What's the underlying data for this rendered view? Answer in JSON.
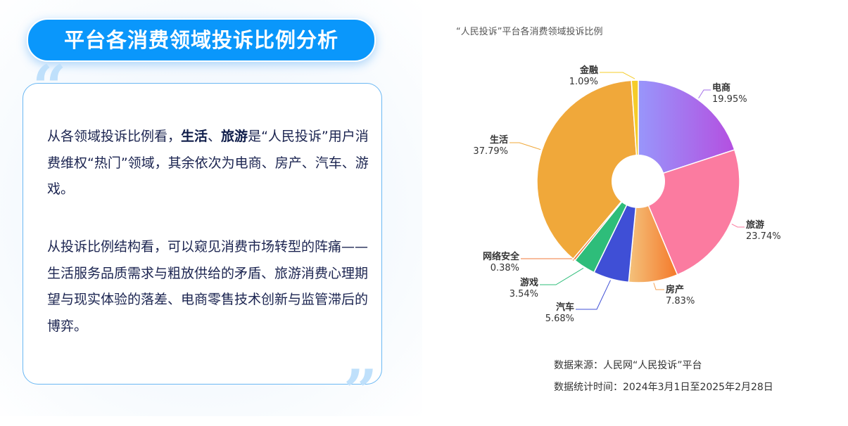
{
  "header": {
    "title": "平台各消费领域投诉比例分析"
  },
  "text": {
    "p1_a": "从各领域投诉比例看，",
    "p1_b1": "生活",
    "p1_sep": "、",
    "p1_b2": "旅游",
    "p1_c": "是“人民投诉”用户消费维权“热门”领域，其余依次为电商、房产、汽车、游戏。",
    "p2": "从投诉比例结构看，可以窥见消费市场转型的阵痛——生活服务品质需求与粗放供给的矛盾、旅游消费心理期望与现实体验的落差、电商零售技术创新与监管滞后的博弈。"
  },
  "footer": {
    "source": "数据来源：人民网“人民投诉”平台",
    "period": "数据统计时间：2024年3月1日至2025年2月28日"
  },
  "chart_data": {
    "type": "pie",
    "variant": "donut",
    "title": "“人民投诉”平台各消费领域投诉比例",
    "start": "12 o'clock, clockwise",
    "slices": [
      {
        "label": "电商",
        "value": 19.95,
        "display": "19.95%",
        "color": "#a46fe8"
      },
      {
        "label": "旅游",
        "value": 23.74,
        "display": "23.74%",
        "color": "#fb7ba0"
      },
      {
        "label": "房产",
        "value": 7.83,
        "display": "7.83%",
        "color": "#f4a052"
      },
      {
        "label": "汽车",
        "value": 5.68,
        "display": "5.68%",
        "color": "#3f4fd6"
      },
      {
        "label": "游戏",
        "value": 3.54,
        "display": "3.54%",
        "color": "#2ebd7a"
      },
      {
        "label": "网络安全",
        "value": 0.38,
        "display": "0.38%",
        "color": "#f07a3a"
      },
      {
        "label": "生活",
        "value": 37.79,
        "display": "37.79%",
        "color": "#f0a83a"
      },
      {
        "label": "金融",
        "value": 1.09,
        "display": "1.09%",
        "color": "#f5cc2a"
      }
    ]
  }
}
